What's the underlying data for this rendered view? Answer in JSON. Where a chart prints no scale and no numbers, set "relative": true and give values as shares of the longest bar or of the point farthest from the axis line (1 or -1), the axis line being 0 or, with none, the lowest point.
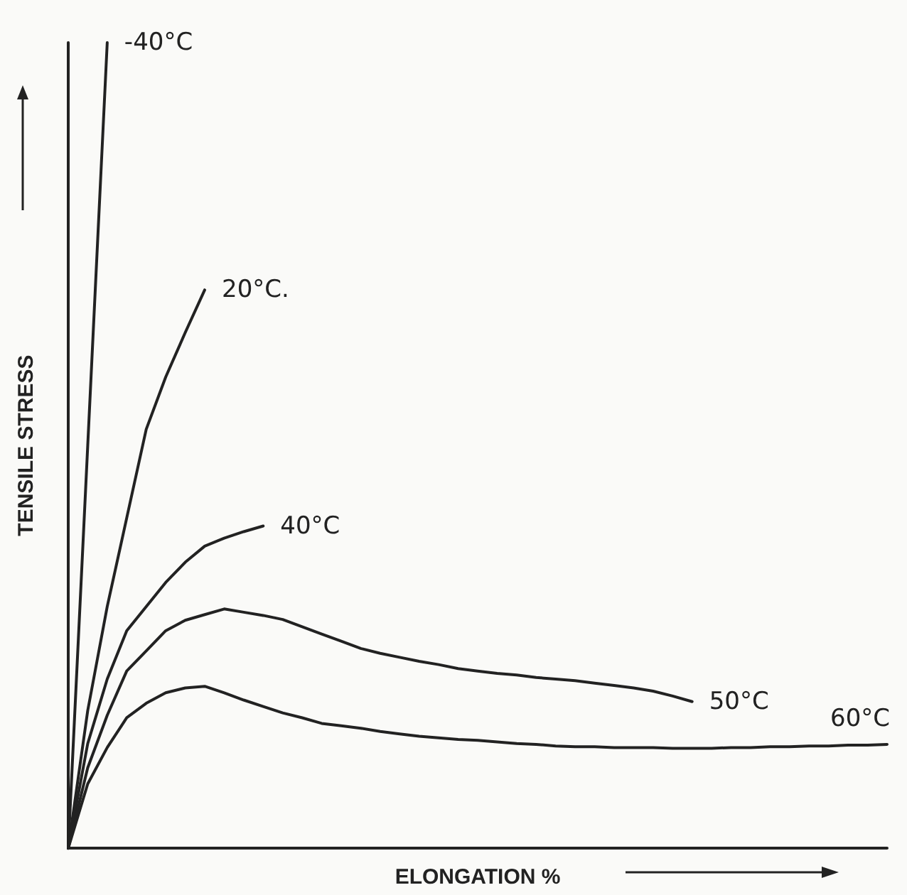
{
  "chart_data": {
    "type": "line",
    "relative": true,
    "xlabel": "ELONGATION %",
    "ylabel": "TENSILE STRESS",
    "grid": false,
    "legend": false,
    "marker": "none",
    "line_style": "solid",
    "categories": [
      null,
      null,
      null,
      null,
      null,
      null,
      null,
      null,
      null,
      null,
      null,
      null,
      null,
      null,
      null,
      null,
      null,
      null,
      null,
      null,
      null,
      null,
      null,
      null,
      null,
      null,
      null,
      null,
      null,
      null,
      null,
      null,
      null,
      null,
      null,
      null,
      null,
      null,
      null,
      null,
      null,
      null,
      null
    ],
    "series": [
      {
        "name": "-40°C",
        "color": "#222222",
        "values": [
          0,
          0.5,
          1,
          null,
          null,
          null,
          null,
          null,
          null,
          null,
          null,
          null,
          null,
          null,
          null,
          null,
          null,
          null,
          null,
          null,
          null,
          null,
          null,
          null,
          null,
          null,
          null,
          null,
          null,
          null,
          null,
          null,
          null,
          null,
          null,
          null,
          null,
          null,
          null,
          null,
          null,
          null,
          null
        ]
      },
      {
        "name": "20°C.",
        "color": "#222222",
        "values": [
          0,
          0.171,
          0.3,
          0.41,
          0.52,
          0.585,
          0.64,
          0.693,
          null,
          null,
          null,
          null,
          null,
          null,
          null,
          null,
          null,
          null,
          null,
          null,
          null,
          null,
          null,
          null,
          null,
          null,
          null,
          null,
          null,
          null,
          null,
          null,
          null,
          null,
          null,
          null,
          null,
          null,
          null,
          null,
          null,
          null,
          null
        ]
      },
      {
        "name": "40°C",
        "color": "#222222",
        "values": [
          0,
          0.13,
          0.21,
          0.27,
          0.3,
          0.33,
          0.355,
          0.375,
          0.385,
          0.393,
          0.4,
          null,
          null,
          null,
          null,
          null,
          null,
          null,
          null,
          null,
          null,
          null,
          null,
          null,
          null,
          null,
          null,
          null,
          null,
          null,
          null,
          null,
          null,
          null,
          null,
          null,
          null,
          null,
          null,
          null,
          null,
          null,
          null
        ]
      },
      {
        "name": "50°C",
        "color": "#222222",
        "values": [
          0,
          0.1,
          0.165,
          0.22,
          0.245,
          0.27,
          0.283,
          0.29,
          0.297,
          0.293,
          0.289,
          0.284,
          0.275,
          0.266,
          0.257,
          0.248,
          0.242,
          0.237,
          0.232,
          0.228,
          0.223,
          0.22,
          0.217,
          0.215,
          0.212,
          0.21,
          0.208,
          0.205,
          0.202,
          0.199,
          0.195,
          0.189,
          0.182,
          null,
          null,
          null,
          null,
          null,
          null,
          null,
          null,
          null,
          null
        ]
      },
      {
        "name": "60°C",
        "color": "#222222",
        "values": [
          0,
          0.08,
          0.125,
          0.162,
          0.18,
          0.193,
          0.199,
          0.201,
          0.193,
          0.184,
          0.176,
          0.168,
          0.162,
          0.155,
          0.152,
          0.149,
          0.145,
          0.142,
          0.139,
          0.137,
          0.135,
          0.134,
          0.132,
          0.13,
          0.129,
          0.127,
          0.126,
          0.126,
          0.125,
          0.125,
          0.125,
          0.124,
          0.124,
          0.124,
          0.125,
          0.125,
          0.126,
          0.126,
          0.127,
          0.127,
          0.128,
          0.128,
          0.129
        ]
      }
    ]
  }
}
